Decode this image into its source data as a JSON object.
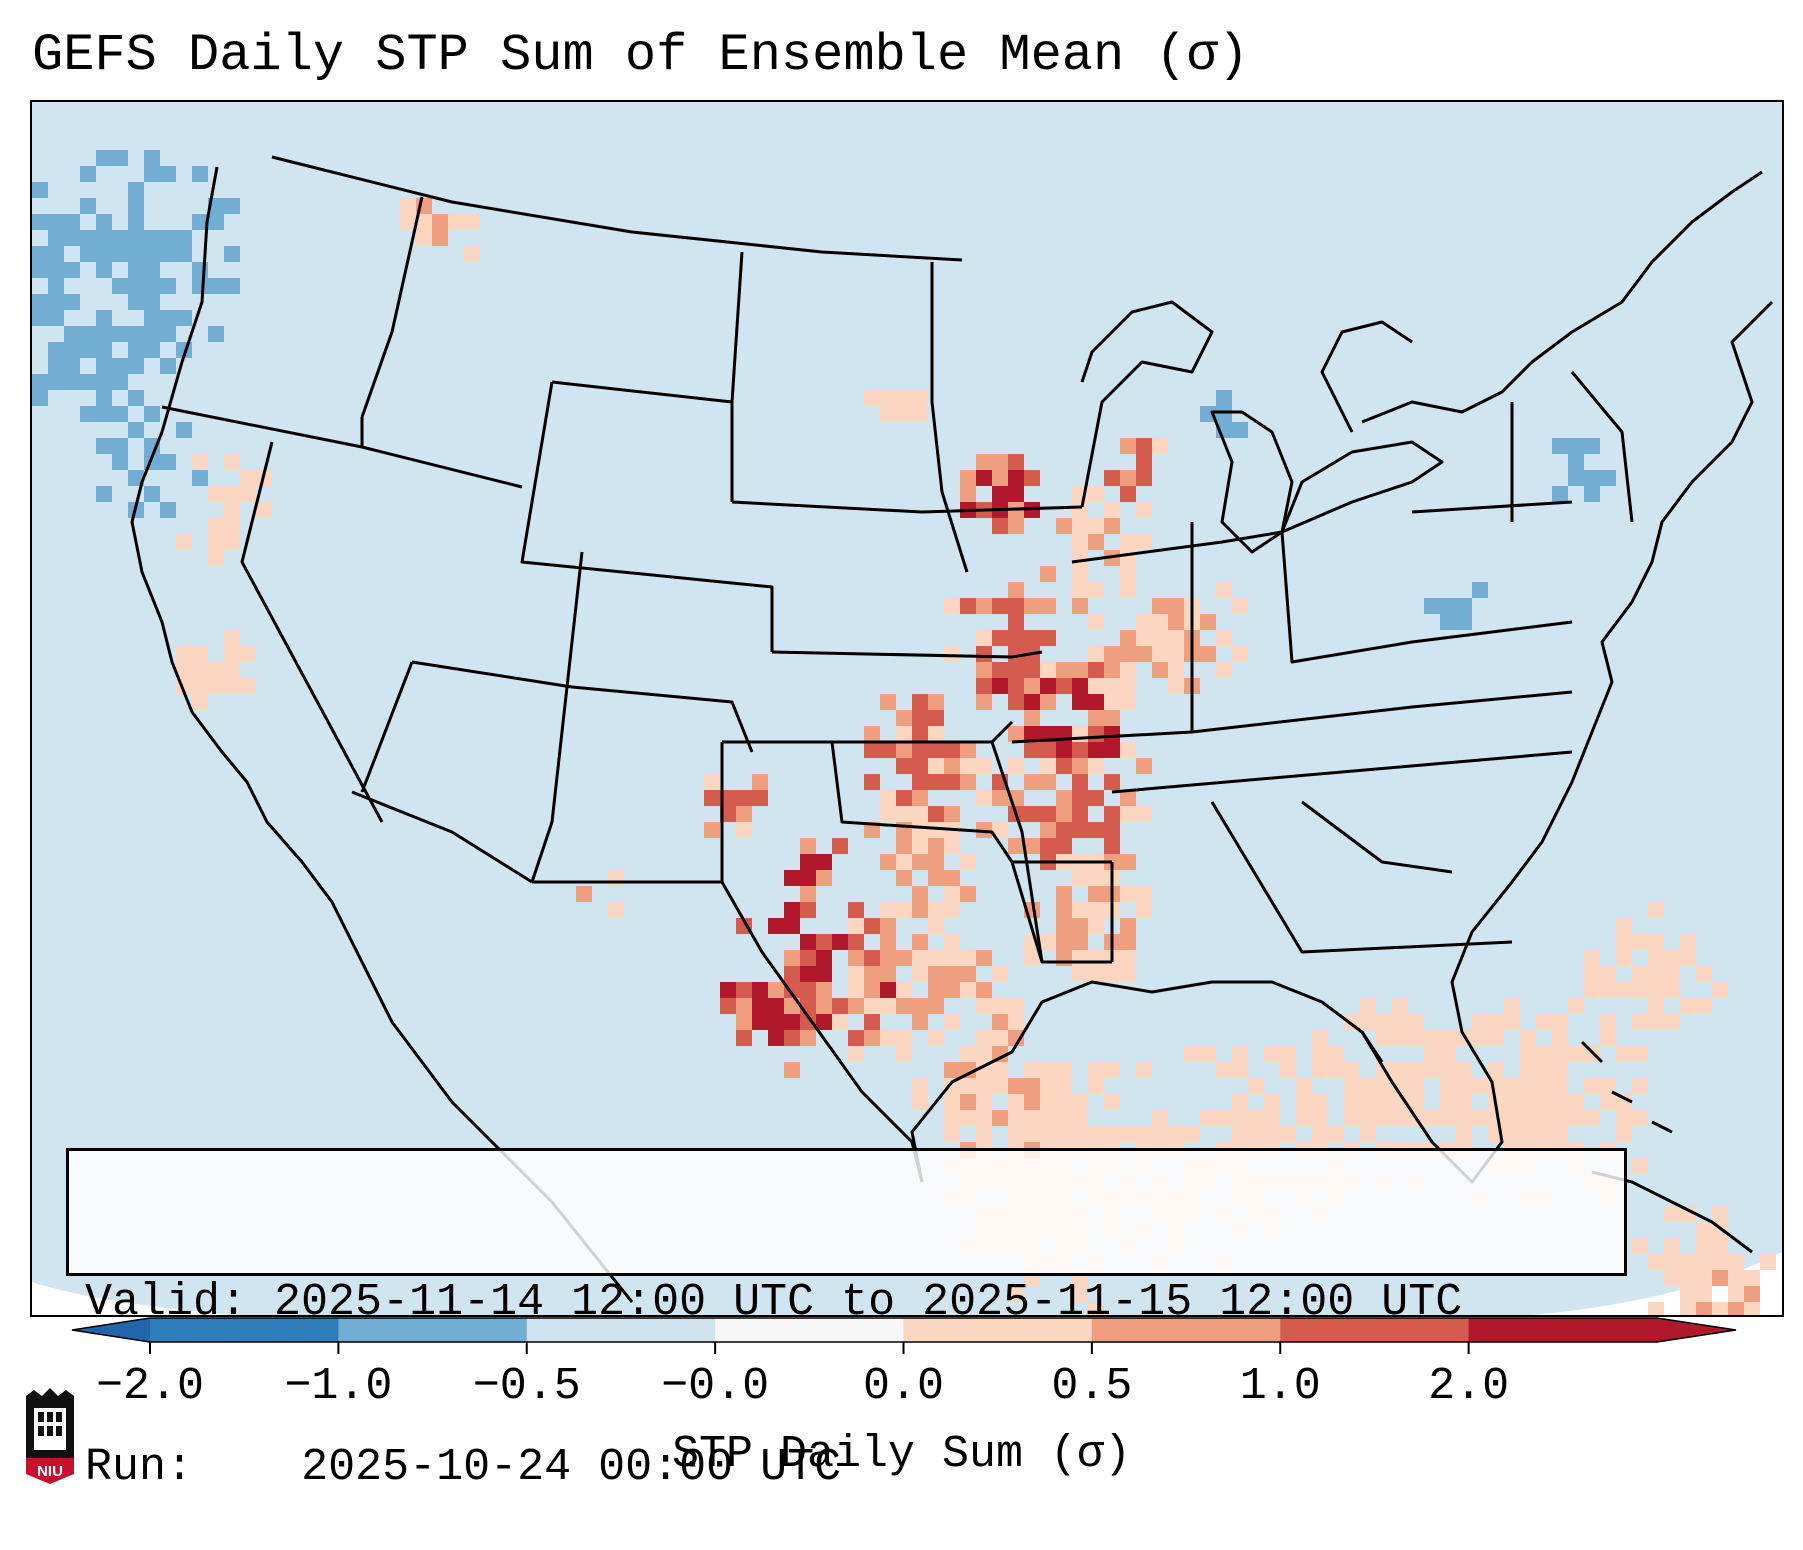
{
  "title": "GEFS Daily STP Sum of Ensemble Mean (σ)",
  "info": {
    "valid_label": "Valid:",
    "valid_value": "2025-11-14 12:00 UTC to 2025-11-15 12:00 UTC",
    "run_label": "Run:",
    "run_value": "2025-10-24 00:00 UTC"
  },
  "colorbar": {
    "label": "STP Daily Sum (σ)",
    "ticks": [
      "−2.0",
      "−1.0",
      "−0.5",
      "−0.0",
      "0.0",
      "0.5",
      "1.0",
      "2.0"
    ],
    "colors": [
      "#2f7dbb",
      "#72aed3",
      "#cfe3ef",
      "#f7f7f7",
      "#fbd6c1",
      "#ef9f7f",
      "#d55b4f",
      "#b2182b"
    ],
    "extend_low_color": "#2166ac",
    "extend_high_color": "#b2182b"
  },
  "map": {
    "background_color": "#d1e5f0",
    "outside_color": "#ffffff",
    "border_color": "#000000"
  },
  "logo": {
    "text": "NIU",
    "color": "#c8102e"
  }
}
